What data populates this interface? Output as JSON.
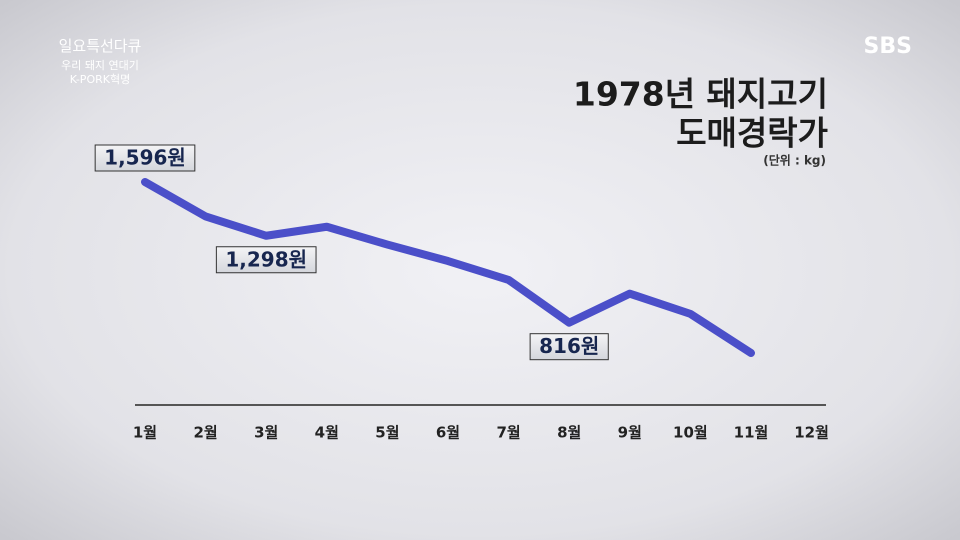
{
  "program": {
    "title": "일요특선다큐",
    "subtitle": [
      "우리 돼지 연대기",
      "K-PORK혁명"
    ]
  },
  "logo": "SBS",
  "chart_data": {
    "type": "line",
    "title": [
      "1978년 돼지고기",
      "도매경락가"
    ],
    "subtitle": "(단위 : kg)",
    "categories": [
      "1월",
      "2월",
      "3월",
      "4월",
      "5월",
      "6월",
      "7월",
      "8월",
      "9월",
      "10월",
      "11월",
      "12월"
    ],
    "values": [
      1596,
      1405,
      1298,
      1348,
      1249,
      1158,
      1053,
      816,
      977,
      865,
      648,
      null
    ],
    "value_labels": [
      "1,596원",
      null,
      "1,298원",
      null,
      null,
      null,
      null,
      "816원",
      null,
      null,
      null,
      null
    ],
    "color": "#4b4fc9"
  }
}
